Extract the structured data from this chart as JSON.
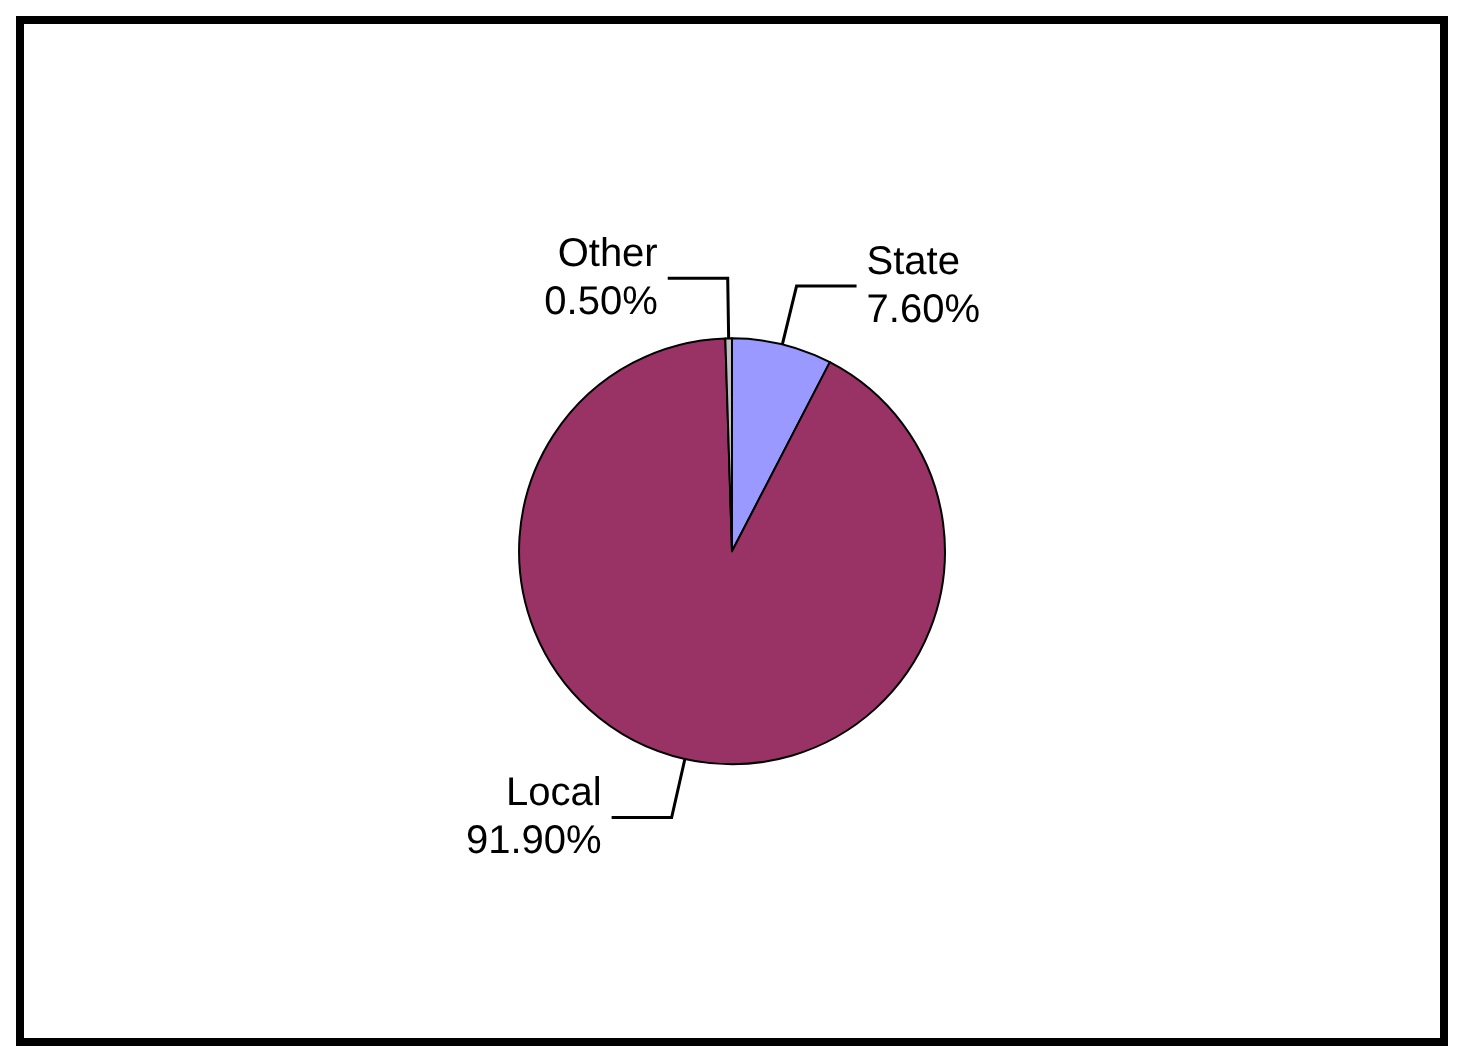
{
  "chart_data": {
    "type": "pie",
    "categories": [
      "State",
      "Local",
      "Other"
    ],
    "values": [
      7.6,
      91.9,
      0.5
    ],
    "colors": [
      "#9999ff",
      "#993366",
      "#c0c0c0"
    ],
    "value_labels": [
      "7.60%",
      "91.90%",
      "0.50%"
    ],
    "legend": false
  }
}
